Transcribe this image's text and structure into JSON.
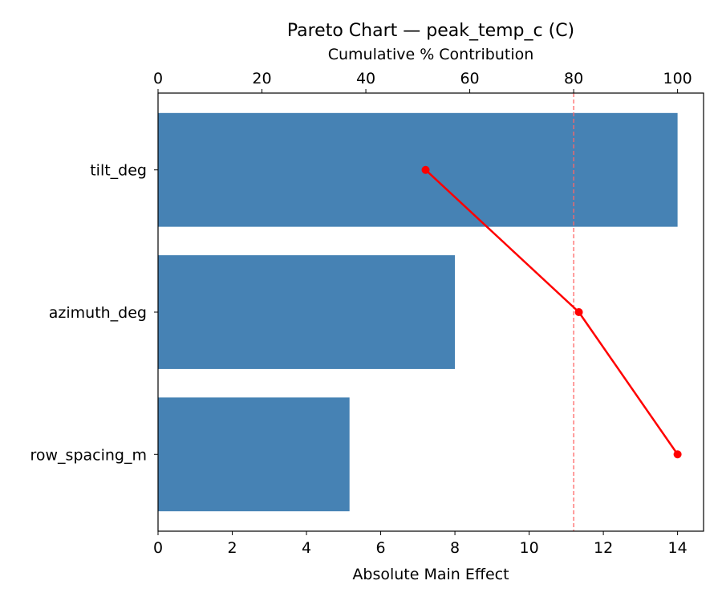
{
  "chart_data": {
    "type": "bar",
    "orientation": "horizontal",
    "title": "Pareto Chart — peak_temp_c (C)",
    "xlabel": "Absolute Main Effect",
    "x2label": "Cumulative % Contribution",
    "ylabel": "",
    "categories": [
      "tilt_deg",
      "azimuth_deg",
      "row_spacing_m"
    ],
    "values": [
      14.0,
      8.0,
      5.16
    ],
    "cumulative_percent": [
      51.5,
      81.0,
      100.0
    ],
    "threshold_percent": 80,
    "xlim": [
      0,
      14.7
    ],
    "x2lim": [
      0,
      105
    ],
    "xticks": [
      0,
      2,
      4,
      6,
      8,
      10,
      12,
      14
    ],
    "x2ticks": [
      0,
      20,
      40,
      60,
      80,
      100
    ],
    "grid": false,
    "colors": {
      "bars": "#4682b4",
      "cumulative_line": "#ff0000",
      "threshold_line": "#ff6666"
    }
  }
}
